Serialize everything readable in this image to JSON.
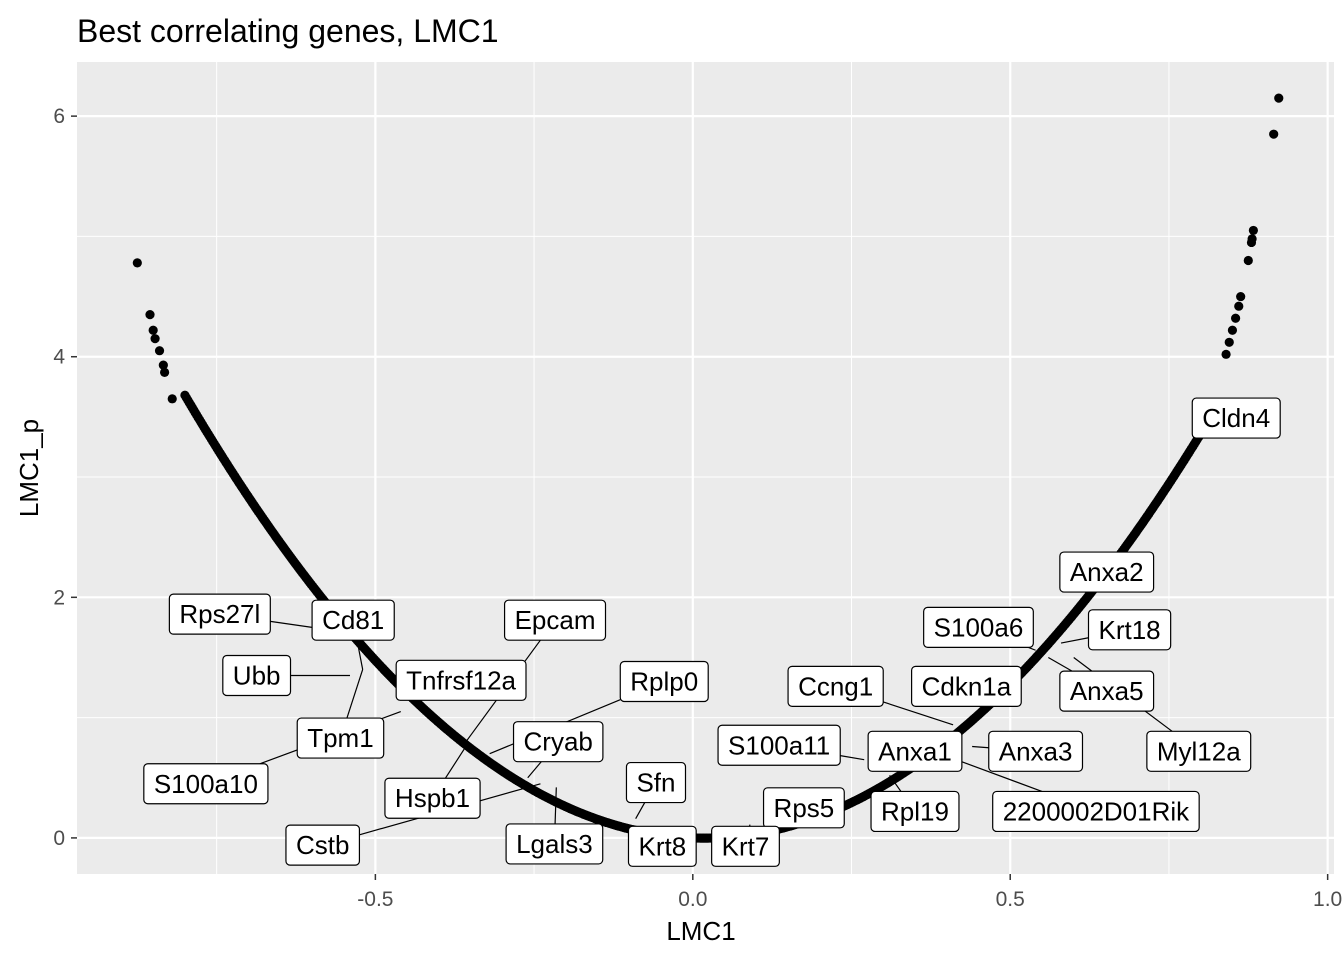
{
  "chart_data": {
    "type": "scatter",
    "title": "Best correlating genes, LMC1",
    "xlabel": "LMC1",
    "ylabel": "LMC1_p",
    "xlim": [
      -0.97,
      1.01
    ],
    "ylim": [
      -0.3,
      6.45
    ],
    "x_ticks": [
      {
        "value": -0.5,
        "label": "-0.5"
      },
      {
        "value": 0.0,
        "label": "0.0"
      },
      {
        "value": 0.5,
        "label": "0.5"
      },
      {
        "value": 1.0,
        "label": "1.0"
      }
    ],
    "y_ticks": [
      {
        "value": 0,
        "label": "0"
      },
      {
        "value": 2,
        "label": "2"
      },
      {
        "value": 4,
        "label": "4"
      },
      {
        "value": 6,
        "label": "6"
      }
    ],
    "grid": true,
    "colors": {
      "panel_bg": "#ebebeb",
      "grid_major": "#ffffff",
      "points": "#000000",
      "label_fill": "#ffffff",
      "label_border": "#000000"
    },
    "curve": {
      "description_free": true,
      "x_min": -0.8,
      "x_max": 0.82,
      "n_points": 700
    },
    "outlier_points": [
      {
        "x": -0.875,
        "y": 4.78
      },
      {
        "x": -0.855,
        "y": 4.35
      },
      {
        "x": -0.85,
        "y": 4.22
      },
      {
        "x": -0.847,
        "y": 4.15
      },
      {
        "x": -0.84,
        "y": 4.05
      },
      {
        "x": -0.834,
        "y": 3.93
      },
      {
        "x": -0.832,
        "y": 3.87
      },
      {
        "x": -0.82,
        "y": 3.65
      },
      {
        "x": 0.84,
        "y": 4.02
      },
      {
        "x": 0.845,
        "y": 4.12
      },
      {
        "x": 0.85,
        "y": 4.22
      },
      {
        "x": 0.855,
        "y": 4.32
      },
      {
        "x": 0.86,
        "y": 4.42
      },
      {
        "x": 0.863,
        "y": 4.5
      },
      {
        "x": 0.875,
        "y": 4.8
      },
      {
        "x": 0.88,
        "y": 4.95
      },
      {
        "x": 0.881,
        "y": 4.98
      },
      {
        "x": 0.883,
        "y": 5.05
      },
      {
        "x": 0.915,
        "y": 5.85
      },
      {
        "x": 0.923,
        "y": 6.15
      }
    ],
    "labels": [
      {
        "text": "Cldn4",
        "px": 0.8,
        "py": 3.5,
        "lx": 0.856,
        "ly": 3.49
      },
      {
        "text": "Anxa2",
        "px": 0.62,
        "py": 2.0,
        "lx": 0.652,
        "ly": 2.21
      },
      {
        "text": "Krt18",
        "px": 0.58,
        "py": 1.62,
        "lx": 0.688,
        "ly": 1.73
      },
      {
        "text": "S100a6",
        "px": 0.54,
        "py": 1.56,
        "lx": 0.45,
        "ly": 1.75
      },
      {
        "text": "Anxa5",
        "px": 0.56,
        "py": 1.5,
        "lx": 0.652,
        "ly": 1.22
      },
      {
        "text": "Myl12a",
        "px": 0.6,
        "py": 1.5,
        "lx": 0.797,
        "ly": 0.72
      },
      {
        "text": "Ccng1",
        "px": 0.41,
        "py": 0.94,
        "lx": 0.225,
        "ly": 1.26
      },
      {
        "text": "Cdkn1a",
        "px": 0.48,
        "py": 1.23,
        "lx": 0.431,
        "ly": 1.26
      },
      {
        "text": "S100a11",
        "px": 0.27,
        "py": 0.65,
        "lx": 0.136,
        "ly": 0.77
      },
      {
        "text": "Anxa1",
        "px": 0.35,
        "py": 0.76,
        "lx": 0.35,
        "ly": 0.72
      },
      {
        "text": "Anxa3",
        "px": 0.44,
        "py": 0.76,
        "lx": 0.54,
        "ly": 0.72
      },
      {
        "text": "Rpl19",
        "px": 0.31,
        "py": 0.52,
        "lx": 0.35,
        "ly": 0.22
      },
      {
        "text": "2200002D01Rik",
        "px": 0.41,
        "py": 0.66,
        "lx": 0.635,
        "ly": 0.22
      },
      {
        "text": "Rps5",
        "px": 0.2,
        "py": 0.35,
        "lx": 0.175,
        "ly": 0.25
      },
      {
        "text": "Krt7",
        "px": 0.09,
        "py": 0.11,
        "lx": 0.083,
        "ly": -0.07
      },
      {
        "text": "Krt8",
        "px": 0.01,
        "py": 0.02,
        "lx": -0.048,
        "ly": -0.07
      },
      {
        "text": "Sfn",
        "px": -0.09,
        "py": 0.16,
        "lx": -0.058,
        "ly": 0.46
      },
      {
        "text": "Lgals3",
        "px": -0.215,
        "py": 0.42,
        "lx": -0.218,
        "ly": -0.05
      },
      {
        "text": "Cryab",
        "px": -0.26,
        "py": 0.5,
        "lx": -0.212,
        "ly": 0.8
      },
      {
        "text": "Rplp0",
        "px": -0.32,
        "py": 0.7,
        "lx": -0.045,
        "ly": 1.3
      },
      {
        "text": "Hspb1",
        "px": -0.355,
        "py": 0.78,
        "lx": -0.41,
        "ly": 0.33
      },
      {
        "text": "Epcam",
        "px": -0.36,
        "py": 0.78,
        "lx": -0.217,
        "ly": 1.81
      },
      {
        "text": "Tnfrsf12a",
        "px": -0.465,
        "py": 1.18,
        "lx": -0.365,
        "ly": 1.31
      },
      {
        "text": "Cd81",
        "px": -0.52,
        "py": 1.4,
        "lx": -0.535,
        "ly": 1.81
      },
      {
        "text": "Tpm1",
        "px": -0.52,
        "py": 1.4,
        "lx": -0.555,
        "ly": 0.83
      },
      {
        "text": "Ubb",
        "px": -0.54,
        "py": 1.35,
        "lx": -0.687,
        "ly": 1.35
      },
      {
        "text": "Rps27l",
        "px": -0.56,
        "py": 1.72,
        "lx": -0.745,
        "ly": 1.86
      },
      {
        "text": "S100a10",
        "px": -0.46,
        "py": 1.05,
        "lx": -0.767,
        "ly": 0.45
      },
      {
        "text": "Cstb",
        "px": -0.24,
        "py": 0.45,
        "lx": -0.583,
        "ly": -0.06
      }
    ]
  }
}
